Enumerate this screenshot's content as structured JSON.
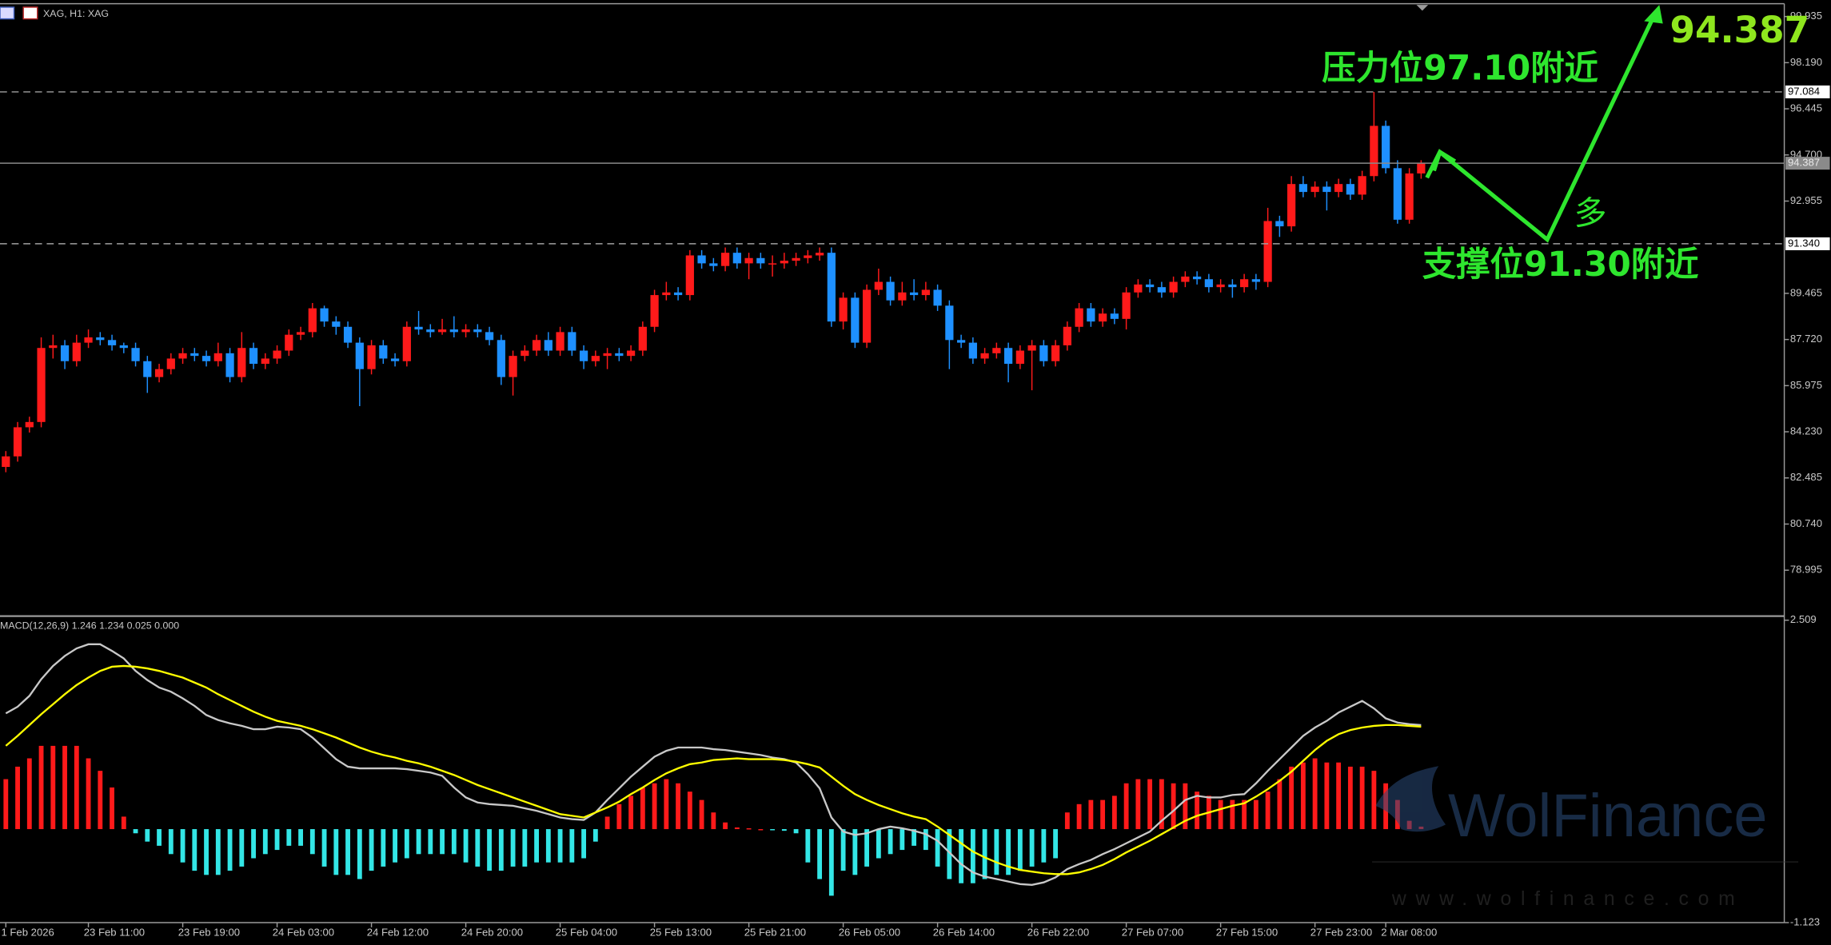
{
  "window_title": "XAG, H1: XAG",
  "chart_data": [
    {
      "type": "candlestick",
      "categories": [
        "1 Feb 2026",
        null,
        null,
        null,
        null,
        null,
        null,
        "23 Feb 11:00",
        null,
        null,
        null,
        null,
        null,
        null,
        null,
        "23 Feb 19:00",
        null,
        null,
        null,
        null,
        null,
        null,
        null,
        "24 Feb 03:00",
        null,
        null,
        null,
        null,
        null,
        null,
        null,
        "24 Feb 12:00",
        null,
        null,
        null,
        null,
        null,
        null,
        null,
        "24 Feb 20:00",
        null,
        null,
        null,
        null,
        null,
        null,
        null,
        "25 Feb 04:00",
        null,
        null,
        null,
        null,
        null,
        null,
        null,
        "25 Feb 13:00",
        null,
        null,
        null,
        null,
        null,
        null,
        null,
        "25 Feb 21:00",
        null,
        null,
        null,
        null,
        null,
        null,
        null,
        "26 Feb 05:00",
        null,
        null,
        null,
        null,
        null,
        null,
        null,
        "26 Feb 14:00",
        null,
        null,
        null,
        null,
        null,
        null,
        null,
        "26 Feb 22:00",
        null,
        null,
        null,
        null,
        null,
        null,
        null,
        "27 Feb 07:00",
        null,
        null,
        null,
        null,
        null,
        null,
        null,
        "27 Feb 15:00",
        null,
        null,
        null,
        null,
        null,
        null,
        null,
        "27 Feb 23:00",
        null,
        null,
        null,
        null,
        null,
        "2 Mar 08:00",
        null,
        null,
        null
      ],
      "open": [
        82.9,
        83.3,
        84.4,
        84.6,
        87.4,
        87.5,
        86.9,
        87.6,
        87.8,
        87.7,
        87.5,
        87.4,
        86.9,
        86.3,
        86.6,
        87.0,
        87.2,
        87.1,
        86.9,
        87.2,
        86.3,
        87.4,
        86.8,
        87.0,
        87.3,
        87.9,
        88.0,
        88.9,
        88.4,
        88.2,
        87.6,
        86.6,
        87.5,
        87.0,
        86.9,
        88.2,
        88.1,
        88.0,
        88.1,
        88.0,
        88.1,
        88.0,
        87.7,
        86.3,
        87.1,
        87.3,
        87.7,
        87.3,
        88.0,
        87.3,
        86.9,
        87.1,
        87.2,
        87.1,
        87.3,
        88.2,
        89.4,
        89.5,
        89.4,
        90.9,
        90.6,
        90.5,
        91.0,
        90.6,
        90.8,
        90.6,
        90.6,
        90.7,
        90.8,
        90.9,
        91.0,
        88.4,
        89.3,
        87.6,
        89.6,
        89.9,
        89.2,
        89.5,
        89.4,
        89.6,
        89.0,
        87.7,
        87.6,
        87.0,
        87.2,
        87.4,
        86.8,
        87.3,
        87.5,
        86.9,
        87.5,
        88.2,
        88.9,
        88.4,
        88.7,
        88.5,
        89.5,
        89.8,
        89.7,
        89.5,
        89.9,
        90.1,
        90.0,
        89.7,
        89.8,
        89.7,
        90.0,
        89.9,
        92.2,
        92.0,
        93.6,
        93.3,
        93.5,
        93.3,
        93.6,
        93.2,
        93.9,
        95.8,
        94.2,
        92.25,
        94.0
      ],
      "high": [
        83.5,
        84.6,
        84.8,
        87.8,
        87.9,
        87.7,
        87.9,
        88.1,
        88.0,
        87.9,
        87.6,
        87.6,
        87.1,
        86.8,
        87.2,
        87.4,
        87.4,
        87.3,
        87.6,
        87.4,
        88.0,
        87.6,
        87.2,
        87.5,
        88.1,
        88.2,
        89.1,
        89.0,
        88.6,
        88.4,
        87.8,
        87.7,
        87.7,
        87.2,
        88.4,
        88.8,
        88.3,
        88.5,
        88.6,
        88.3,
        88.3,
        88.2,
        87.9,
        87.3,
        87.5,
        87.9,
        88.0,
        88.2,
        88.2,
        87.5,
        87.3,
        87.4,
        87.4,
        87.5,
        88.4,
        89.6,
        89.9,
        89.7,
        91.1,
        91.1,
        90.8,
        91.2,
        91.2,
        91.0,
        91.0,
        90.9,
        91.0,
        91.0,
        91.1,
        91.2,
        91.2,
        89.5,
        89.5,
        89.8,
        90.4,
        90.1,
        89.9,
        90.0,
        89.9,
        89.8,
        89.2,
        87.9,
        87.8,
        87.4,
        87.6,
        87.6,
        87.5,
        87.7,
        87.7,
        87.7,
        88.4,
        89.1,
        89.1,
        88.9,
        88.9,
        89.7,
        90.0,
        90.0,
        89.9,
        90.1,
        90.3,
        90.3,
        90.2,
        90.0,
        90.0,
        90.2,
        90.2,
        92.7,
        92.4,
        93.9,
        93.9,
        93.7,
        93.7,
        93.8,
        93.8,
        94.1,
        97.08,
        96.0,
        94.5,
        94.2,
        94.5
      ],
      "low": [
        82.7,
        83.1,
        84.2,
        84.4,
        87.0,
        86.6,
        86.7,
        87.4,
        87.5,
        87.3,
        87.2,
        86.7,
        85.7,
        86.1,
        86.4,
        86.8,
        86.9,
        86.7,
        86.7,
        86.1,
        86.1,
        86.6,
        86.6,
        86.8,
        87.1,
        87.7,
        87.8,
        88.2,
        87.9,
        87.4,
        85.2,
        86.4,
        86.8,
        86.7,
        86.7,
        87.9,
        87.8,
        87.9,
        87.8,
        87.8,
        87.8,
        87.5,
        86.0,
        85.6,
        86.9,
        87.1,
        87.1,
        87.1,
        87.1,
        86.6,
        86.7,
        86.6,
        86.9,
        86.9,
        87.1,
        88.0,
        89.2,
        89.2,
        89.2,
        90.4,
        90.3,
        90.3,
        90.4,
        90.0,
        90.4,
        90.1,
        90.4,
        90.5,
        90.6,
        90.7,
        88.2,
        88.1,
        87.4,
        87.4,
        89.4,
        89.0,
        89.0,
        89.2,
        89.2,
        88.8,
        86.6,
        87.4,
        86.8,
        86.8,
        87.0,
        86.1,
        86.6,
        85.8,
        86.7,
        86.7,
        87.3,
        88.0,
        88.2,
        88.2,
        88.3,
        88.1,
        89.3,
        89.5,
        89.3,
        89.3,
        89.7,
        89.8,
        89.5,
        89.5,
        89.3,
        89.5,
        89.6,
        89.7,
        91.6,
        91.8,
        93.1,
        93.1,
        92.6,
        93.1,
        93.0,
        93.0,
        93.7,
        94.0,
        92.1,
        92.1,
        93.8
      ],
      "close": [
        83.3,
        84.4,
        84.6,
        87.4,
        87.5,
        86.9,
        87.6,
        87.8,
        87.7,
        87.5,
        87.4,
        86.9,
        86.3,
        86.6,
        87.0,
        87.2,
        87.1,
        86.9,
        87.2,
        86.3,
        87.4,
        86.8,
        87.0,
        87.3,
        87.9,
        88.0,
        88.9,
        88.4,
        88.2,
        87.6,
        86.6,
        87.5,
        87.0,
        86.9,
        88.2,
        88.1,
        88.0,
        88.1,
        88.0,
        88.1,
        88.0,
        87.7,
        86.3,
        87.1,
        87.3,
        87.7,
        87.3,
        88.0,
        87.3,
        86.9,
        87.1,
        87.2,
        87.1,
        87.3,
        88.2,
        89.4,
        89.5,
        89.4,
        90.9,
        90.6,
        90.5,
        91.0,
        90.6,
        90.8,
        90.6,
        90.6,
        90.7,
        90.8,
        90.9,
        91.0,
        88.4,
        89.3,
        87.6,
        89.6,
        89.9,
        89.2,
        89.5,
        89.4,
        89.6,
        89.0,
        87.7,
        87.6,
        87.0,
        87.2,
        87.4,
        86.8,
        87.3,
        87.5,
        86.9,
        87.5,
        88.2,
        88.9,
        88.4,
        88.7,
        88.5,
        89.5,
        89.8,
        89.7,
        89.5,
        89.9,
        90.1,
        90.0,
        89.7,
        89.8,
        89.7,
        90.0,
        89.9,
        92.2,
        92.0,
        93.6,
        93.3,
        93.5,
        93.3,
        93.6,
        93.2,
        93.9,
        95.8,
        94.2,
        92.25,
        94.0,
        94.387
      ],
      "up_color": "#ff1a1a",
      "down_color": "#1e90ff",
      "ylim": [
        77.28,
        100.42
      ],
      "yticks": [
        99.935,
        {
          "value": 98.19,
          "label": "98.190"
        },
        96.445,
        {
          "value": 94.7,
          "label": "94.700"
        },
        92.955,
        89.465,
        {
          "value": 87.72,
          "label": "87.720"
        },
        85.975,
        {
          "value": 84.23,
          "label": "84.230"
        },
        82.485,
        {
          "value": 80.74,
          "label": "80.740"
        },
        78.995
      ],
      "levels": [
        {
          "value": 97.084,
          "label": "97.084",
          "style": "dashed"
        },
        {
          "value": 94.387,
          "label": "94.387",
          "style": "solid"
        },
        {
          "value": 91.34,
          "label": "91.340",
          "style": "dashed"
        }
      ],
      "annotations": {
        "resistance": "压力位97.10附近",
        "support": "支撑位91.30附近",
        "direction": "多",
        "target": "94.387"
      }
    },
    {
      "type": "macd",
      "title": "MACD(12,26,9) 1.246 1.234 0.025 0.000",
      "ylim": [
        -1.123,
        2.509
      ],
      "yticks": [
        2.509,
        -1.123
      ],
      "histogram": {
        "positive_color": "#ff1a1a",
        "negative_color": "#33e6e6",
        "values": [
          0.6,
          0.75,
          0.85,
          1.0,
          1.0,
          1.0,
          1.0,
          0.85,
          0.7,
          0.5,
          0.15,
          -0.05,
          -0.15,
          -0.2,
          -0.3,
          -0.4,
          -0.5,
          -0.55,
          -0.55,
          -0.5,
          -0.45,
          -0.35,
          -0.3,
          -0.25,
          -0.2,
          -0.2,
          -0.3,
          -0.45,
          -0.55,
          -0.55,
          -0.6,
          -0.5,
          -0.45,
          -0.4,
          -0.35,
          -0.3,
          -0.3,
          -0.3,
          -0.3,
          -0.4,
          -0.45,
          -0.5,
          -0.5,
          -0.45,
          -0.45,
          -0.4,
          -0.4,
          -0.4,
          -0.4,
          -0.35,
          -0.15,
          0.15,
          0.3,
          0.4,
          0.5,
          0.55,
          0.6,
          0.55,
          0.45,
          0.35,
          0.2,
          0.08,
          0.02,
          0.01,
          0.0,
          -0.01,
          -0.02,
          -0.05,
          -0.4,
          -0.6,
          -0.8,
          -0.5,
          -0.55,
          -0.45,
          -0.35,
          -0.3,
          -0.25,
          -0.2,
          -0.25,
          -0.45,
          -0.6,
          -0.65,
          -0.65,
          -0.6,
          -0.55,
          -0.55,
          -0.5,
          -0.45,
          -0.4,
          -0.35,
          0.2,
          0.3,
          0.35,
          0.35,
          0.4,
          0.55,
          0.6,
          0.6,
          0.6,
          0.55,
          0.55,
          0.45,
          0.4,
          0.35,
          0.35,
          0.35,
          0.35,
          0.45,
          0.6,
          0.75,
          0.8,
          0.85,
          0.8,
          0.8,
          0.75,
          0.75,
          0.7,
          0.55,
          0.35,
          0.1,
          0.03
        ]
      },
      "series": [
        {
          "color": "#c8c8c8",
          "values": [
            1.39,
            1.47,
            1.6,
            1.8,
            1.96,
            2.08,
            2.17,
            2.22,
            2.22,
            2.14,
            2.05,
            1.9,
            1.79,
            1.7,
            1.65,
            1.57,
            1.48,
            1.37,
            1.31,
            1.27,
            1.24,
            1.2,
            1.2,
            1.23,
            1.22,
            1.2,
            1.1,
            0.97,
            0.84,
            0.75,
            0.73,
            0.73,
            0.73,
            0.73,
            0.72,
            0.7,
            0.68,
            0.64,
            0.5,
            0.38,
            0.32,
            0.3,
            0.29,
            0.28,
            0.25,
            0.22,
            0.18,
            0.14,
            0.12,
            0.11,
            0.2,
            0.35,
            0.49,
            0.63,
            0.75,
            0.87,
            0.94,
            0.98,
            0.98,
            0.98,
            0.96,
            0.95,
            0.93,
            0.91,
            0.89,
            0.86,
            0.84,
            0.8,
            0.66,
            0.49,
            0.14,
            -0.03,
            -0.07,
            -0.05,
            0.0,
            0.03,
            0.01,
            -0.02,
            -0.06,
            -0.14,
            -0.28,
            -0.42,
            -0.52,
            -0.57,
            -0.6,
            -0.63,
            -0.66,
            -0.67,
            -0.64,
            -0.58,
            -0.48,
            -0.42,
            -0.37,
            -0.3,
            -0.24,
            -0.17,
            -0.1,
            -0.03,
            0.1,
            0.22,
            0.35,
            0.4,
            0.38,
            0.38,
            0.41,
            0.42,
            0.55,
            0.7,
            0.84,
            0.98,
            1.12,
            1.22,
            1.3,
            1.4,
            1.47,
            1.54,
            1.45,
            1.33,
            1.28,
            1.26,
            1.25
          ]
        },
        {
          "color": "#ffff00",
          "values": [
            1.0,
            1.12,
            1.25,
            1.38,
            1.5,
            1.62,
            1.73,
            1.82,
            1.9,
            1.95,
            1.96,
            1.95,
            1.93,
            1.9,
            1.86,
            1.82,
            1.76,
            1.7,
            1.62,
            1.55,
            1.48,
            1.41,
            1.35,
            1.3,
            1.27,
            1.24,
            1.2,
            1.15,
            1.1,
            1.04,
            0.98,
            0.93,
            0.89,
            0.86,
            0.82,
            0.79,
            0.75,
            0.7,
            0.65,
            0.59,
            0.53,
            0.48,
            0.43,
            0.38,
            0.33,
            0.28,
            0.23,
            0.18,
            0.16,
            0.14,
            0.2,
            0.26,
            0.33,
            0.42,
            0.5,
            0.59,
            0.67,
            0.73,
            0.78,
            0.8,
            0.83,
            0.84,
            0.85,
            0.84,
            0.84,
            0.84,
            0.83,
            0.81,
            0.78,
            0.74,
            0.63,
            0.52,
            0.42,
            0.35,
            0.29,
            0.24,
            0.19,
            0.15,
            0.12,
            0.03,
            -0.07,
            -0.17,
            -0.27,
            -0.34,
            -0.4,
            -0.45,
            -0.49,
            -0.51,
            -0.53,
            -0.54,
            -0.54,
            -0.52,
            -0.48,
            -0.43,
            -0.36,
            -0.28,
            -0.21,
            -0.14,
            -0.06,
            0.02,
            0.1,
            0.16,
            0.2,
            0.24,
            0.28,
            0.31,
            0.39,
            0.48,
            0.58,
            0.69,
            0.82,
            0.95,
            1.06,
            1.14,
            1.19,
            1.22,
            1.24,
            1.25,
            1.25,
            1.24,
            1.23
          ]
        }
      ]
    }
  ],
  "watermark": {
    "brand": "WolFinance",
    "url": "www.wolfinance.com"
  }
}
